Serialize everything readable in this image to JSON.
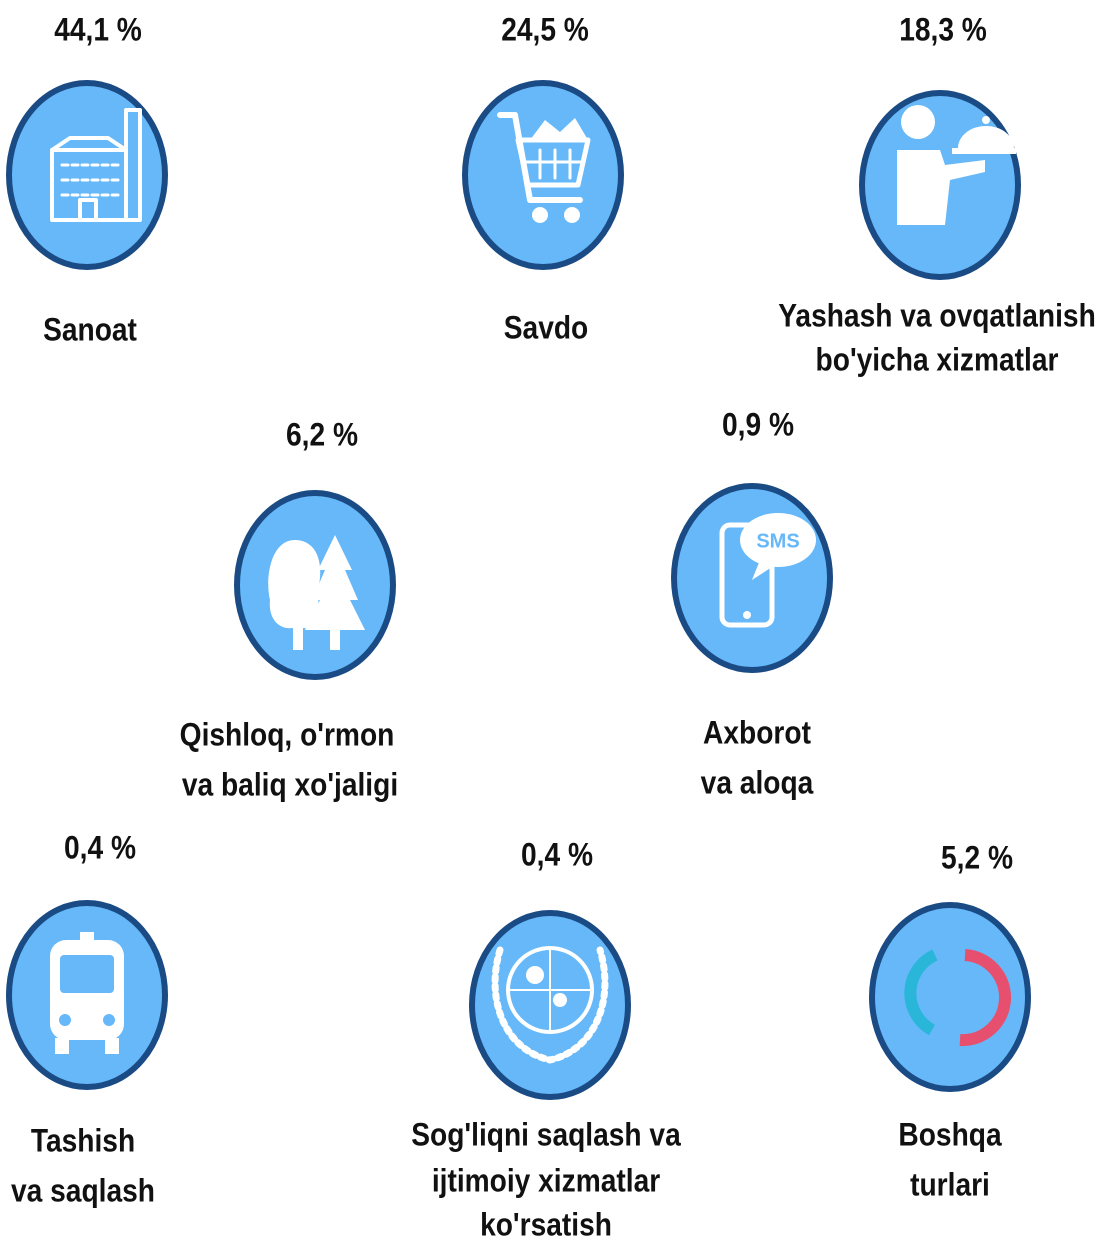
{
  "items": [
    {
      "value": "44,1 %",
      "label": [
        "Sanoat"
      ]
    },
    {
      "value": "24,5 %",
      "label": [
        "Savdo"
      ]
    },
    {
      "value": "18,3 %",
      "label": [
        "Yashash va ovqatlanish",
        "bo'yicha xizmatlar"
      ]
    },
    {
      "value": "6,2 %",
      "label": [
        "Qishloq, o'rmon",
        "va baliq xo'jaligi"
      ]
    },
    {
      "value": "0,9 %",
      "label": [
        "Axborot",
        "va aloqa"
      ]
    },
    {
      "value": "0,4 %",
      "label": [
        "Tashish",
        "va saqlash"
      ]
    },
    {
      "value": "0,4 %",
      "label": [
        "Sog'liqni saqlash va",
        "ijtimoiy xizmatlar",
        "ko'rsatish"
      ]
    },
    {
      "value": "5,2 %",
      "label": [
        "Boshqa",
        "turlari"
      ]
    }
  ]
}
